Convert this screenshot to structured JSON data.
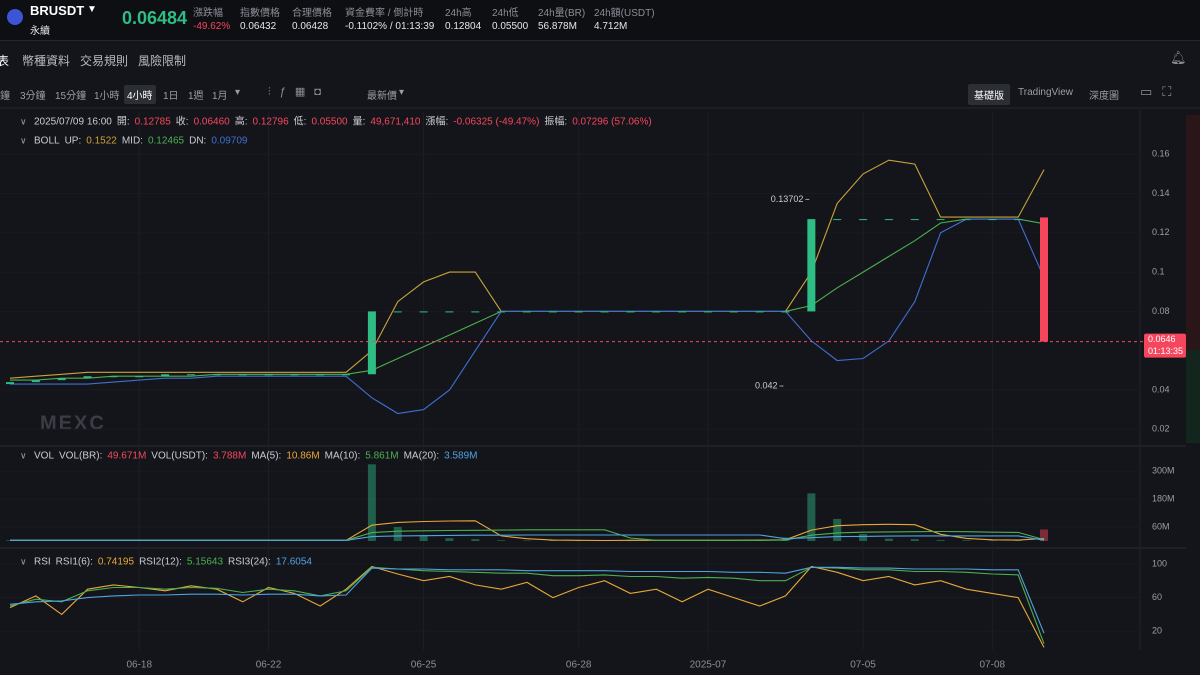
{
  "header": {
    "symbol": "BRUSDT",
    "contract": "永續",
    "price": "0.06484",
    "stats": [
      {
        "label": "漲跌幅",
        "value": "-49.62%"
      },
      {
        "label": "指數價格",
        "value": "0.06432"
      },
      {
        "label": "合理價格",
        "value": "0.06428"
      },
      {
        "label": "資金費率 / 倒計時",
        "value": "-0.1102% / 01:13:39"
      },
      {
        "label": "24h高",
        "value": "0.12804"
      },
      {
        "label": "24h低",
        "value": "0.05500"
      },
      {
        "label": "24h量(BR)",
        "value": "56.878M"
      },
      {
        "label": "24h額(USDT)",
        "value": "4.712M"
      }
    ]
  },
  "tabs": [
    "表",
    "幣種資料",
    "交易規則",
    "風險限制"
  ],
  "intervals": [
    "鐘",
    "3分鐘",
    "15分鐘",
    "1小時",
    "4小時",
    "1日",
    "1週",
    "1月"
  ],
  "price_type": "最新價",
  "views": [
    "基礎版",
    "TradingView",
    "深度圖"
  ],
  "chart_data": [
    {
      "type": "candlestick",
      "title": "BOLL",
      "watermark": "MEXC",
      "info": {
        "time": "2025/07/09 16:00",
        "items": [
          {
            "label": "開:",
            "value": "0.12785"
          },
          {
            "label": "收:",
            "value": "0.06460"
          },
          {
            "label": "高:",
            "value": "0.12796"
          },
          {
            "label": "低:",
            "value": "0.05500"
          },
          {
            "label": "量:",
            "value": "49,671,410"
          },
          {
            "label": "漲幅:",
            "value": "-0.06325 (-49.47%)"
          },
          {
            "label": "振幅:",
            "value": "0.07296 (57.06%)"
          }
        ]
      },
      "categories": [
        null,
        null,
        null,
        null,
        null,
        "06-18",
        null,
        null,
        null,
        null,
        "06-22",
        null,
        null,
        null,
        null,
        null,
        "06-25",
        null,
        null,
        null,
        null,
        null,
        "06-28",
        null,
        null,
        null,
        null,
        "2025-07",
        null,
        null,
        null,
        null,
        null,
        "07-05",
        null,
        null,
        null,
        null,
        "07-08",
        null,
        null
      ],
      "open": [
        0.043,
        0.044,
        0.045,
        0.046,
        0.047,
        0.047,
        0.047,
        0.048,
        0.048,
        0.048,
        0.048,
        0.048,
        0.048,
        0.048,
        0.048,
        0.08,
        0.08,
        0.08,
        0.08,
        0.08,
        0.08,
        0.08,
        0.08,
        0.08,
        0.08,
        0.08,
        0.08,
        0.08,
        0.08,
        0.08,
        0.08,
        0.08,
        0.127,
        0.127,
        0.127,
        0.127,
        0.127,
        0.127,
        0.127,
        0.127,
        0.12785
      ],
      "close": [
        0.044,
        0.045,
        0.046,
        0.047,
        0.047,
        0.047,
        0.048,
        0.048,
        0.048,
        0.048,
        0.048,
        0.048,
        0.048,
        0.048,
        0.08,
        0.08,
        0.08,
        0.08,
        0.08,
        0.08,
        0.08,
        0.08,
        0.08,
        0.08,
        0.08,
        0.08,
        0.08,
        0.08,
        0.08,
        0.08,
        0.08,
        0.127,
        0.127,
        0.127,
        0.127,
        0.127,
        0.127,
        0.127,
        0.127,
        0.127,
        0.0646
      ],
      "up_color": "#2ebd85",
      "down_color": "#f6465d",
      "series": [
        {
          "name": "UP:",
          "color": "#c9a33b",
          "values": [
            0.046,
            0.047,
            0.048,
            0.049,
            0.049,
            0.049,
            0.049,
            0.049,
            0.049,
            0.049,
            0.049,
            0.049,
            0.049,
            0.049,
            0.06,
            0.085,
            0.095,
            0.1,
            0.1,
            0.08,
            0.08,
            0.08,
            0.08,
            0.08,
            0.08,
            0.08,
            0.08,
            0.08,
            0.08,
            0.08,
            0.08,
            0.1,
            0.135,
            0.15,
            0.157,
            0.155,
            0.128,
            0.128,
            0.128,
            0.128,
            0.1522
          ]
        },
        {
          "name": "MID:",
          "color": "#4caf50",
          "values": [
            0.045,
            0.045,
            0.046,
            0.046,
            0.047,
            0.047,
            0.047,
            0.047,
            0.048,
            0.048,
            0.048,
            0.048,
            0.048,
            0.048,
            0.05,
            0.056,
            0.062,
            0.068,
            0.074,
            0.08,
            0.08,
            0.08,
            0.08,
            0.08,
            0.08,
            0.08,
            0.08,
            0.08,
            0.08,
            0.08,
            0.08,
            0.083,
            0.092,
            0.1,
            0.108,
            0.116,
            0.125,
            0.127,
            0.127,
            0.127,
            0.12465
          ]
        },
        {
          "name": "DN:",
          "color": "#3f6fd1",
          "values": [
            0.043,
            0.043,
            0.043,
            0.043,
            0.044,
            0.045,
            0.046,
            0.046,
            0.047,
            0.047,
            0.047,
            0.047,
            0.047,
            0.047,
            0.036,
            0.028,
            0.03,
            0.04,
            0.06,
            0.08,
            0.08,
            0.08,
            0.08,
            0.08,
            0.08,
            0.08,
            0.08,
            0.08,
            0.08,
            0.08,
            0.08,
            0.065,
            0.055,
            0.056,
            0.065,
            0.085,
            0.12,
            0.127,
            0.127,
            0.127,
            0.09709
          ]
        }
      ],
      "annotations": [
        {
          "value": 0.13702
        },
        {
          "value": 0.042
        }
      ],
      "last_price": {
        "value": 0.0646,
        "countdown": "01:13:35"
      },
      "ylim": [
        0.013,
        0.18
      ],
      "yticks": [
        0.16,
        0.14,
        0.12,
        0.1,
        0.08,
        0.04,
        0.02
      ]
    },
    {
      "type": "bar",
      "title": "VOL",
      "name": "VOL(BR):",
      "values": [
        3,
        2,
        4,
        3,
        5,
        2,
        3,
        2,
        3,
        2,
        4,
        2,
        3,
        5,
        330,
        60,
        25,
        12,
        8,
        3,
        2,
        3,
        2,
        2,
        6,
        2,
        2,
        3,
        2,
        4,
        15,
        205,
        95,
        30,
        10,
        8,
        4,
        3,
        2,
        3,
        49.671
      ],
      "last_label": "49.671M",
      "extra": {
        "label": "VOL(USDT):",
        "value": "3.788M"
      },
      "series": [
        {
          "name": "MA(5):",
          "color": "#e8a838",
          "last_label": "10.86M",
          "values": [
            3,
            3,
            3,
            3,
            3,
            3,
            3,
            3,
            3,
            3,
            3,
            3,
            3,
            3,
            68,
            80,
            84,
            86,
            87,
            22,
            10,
            4,
            3,
            2,
            3,
            3,
            3,
            3,
            3,
            4,
            5,
            47,
            66,
            70,
            72,
            70,
            29,
            11,
            5,
            4,
            10.86
          ]
        },
        {
          "name": "MA(10):",
          "color": "#4caf50",
          "last_label": "5.861M",
          "values": [
            3,
            3,
            3,
            3,
            3,
            3,
            3,
            3,
            3,
            3,
            3,
            3,
            3,
            3,
            36,
            42,
            44,
            45,
            46,
            47,
            48,
            48,
            48,
            48,
            13,
            3,
            3,
            3,
            3,
            3,
            4,
            25,
            35,
            38,
            39,
            40,
            41,
            40,
            38,
            37,
            5.861
          ]
        },
        {
          "name": "MA(20):",
          "color": "#4fa3e0",
          "last_label": "3.589M",
          "values": [
            3,
            3,
            3,
            3,
            3,
            3,
            3,
            3,
            3,
            3,
            3,
            3,
            3,
            3,
            19,
            22,
            23,
            24,
            25,
            25,
            26,
            26,
            26,
            26,
            26,
            26,
            26,
            26,
            26,
            26,
            10,
            14,
            19,
            20,
            21,
            22,
            22,
            22,
            22,
            22,
            3.589
          ]
        }
      ],
      "ylim": [
        0,
        340
      ],
      "yticks": [
        {
          "value": 300,
          "label": "300M"
        },
        {
          "value": 180,
          "label": "180M"
        },
        {
          "value": 60,
          "label": "60M"
        }
      ]
    },
    {
      "type": "line",
      "title": "RSI",
      "series": [
        {
          "name": "RSI1(6):",
          "color": "#e8a838",
          "values": [
            48,
            62,
            40,
            70,
            75,
            72,
            68,
            74,
            70,
            55,
            72,
            65,
            50,
            70,
            97,
            88,
            80,
            85,
            75,
            70,
            78,
            60,
            72,
            80,
            65,
            70,
            55,
            70,
            60,
            50,
            62,
            97,
            90,
            80,
            85,
            75,
            80,
            70,
            65,
            60,
            0.74195
          ]
        },
        {
          "name": "RSI2(12):",
          "color": "#4caf50",
          "values": [
            50,
            58,
            55,
            68,
            72,
            72,
            70,
            72,
            71,
            66,
            70,
            68,
            62,
            68,
            96,
            94,
            92,
            91,
            90,
            89,
            89,
            86,
            86,
            87,
            85,
            85,
            83,
            84,
            83,
            80,
            80,
            96,
            95,
            93,
            93,
            91,
            91,
            90,
            88,
            87,
            5.15643
          ]
        },
        {
          "name": "RSI3(24):",
          "color": "#4fa3e0",
          "values": [
            52,
            55,
            56,
            60,
            62,
            63,
            63,
            64,
            64,
            63,
            64,
            64,
            62,
            63,
            95,
            94,
            94,
            93,
            93,
            93,
            92,
            92,
            92,
            92,
            91,
            91,
            91,
            91,
            90,
            90,
            89,
            96,
            96,
            95,
            95,
            94,
            94,
            94,
            93,
            93,
            17.6054
          ]
        }
      ],
      "ylim": [
        0,
        113
      ],
      "yticks": [
        100,
        60,
        20
      ]
    }
  ]
}
